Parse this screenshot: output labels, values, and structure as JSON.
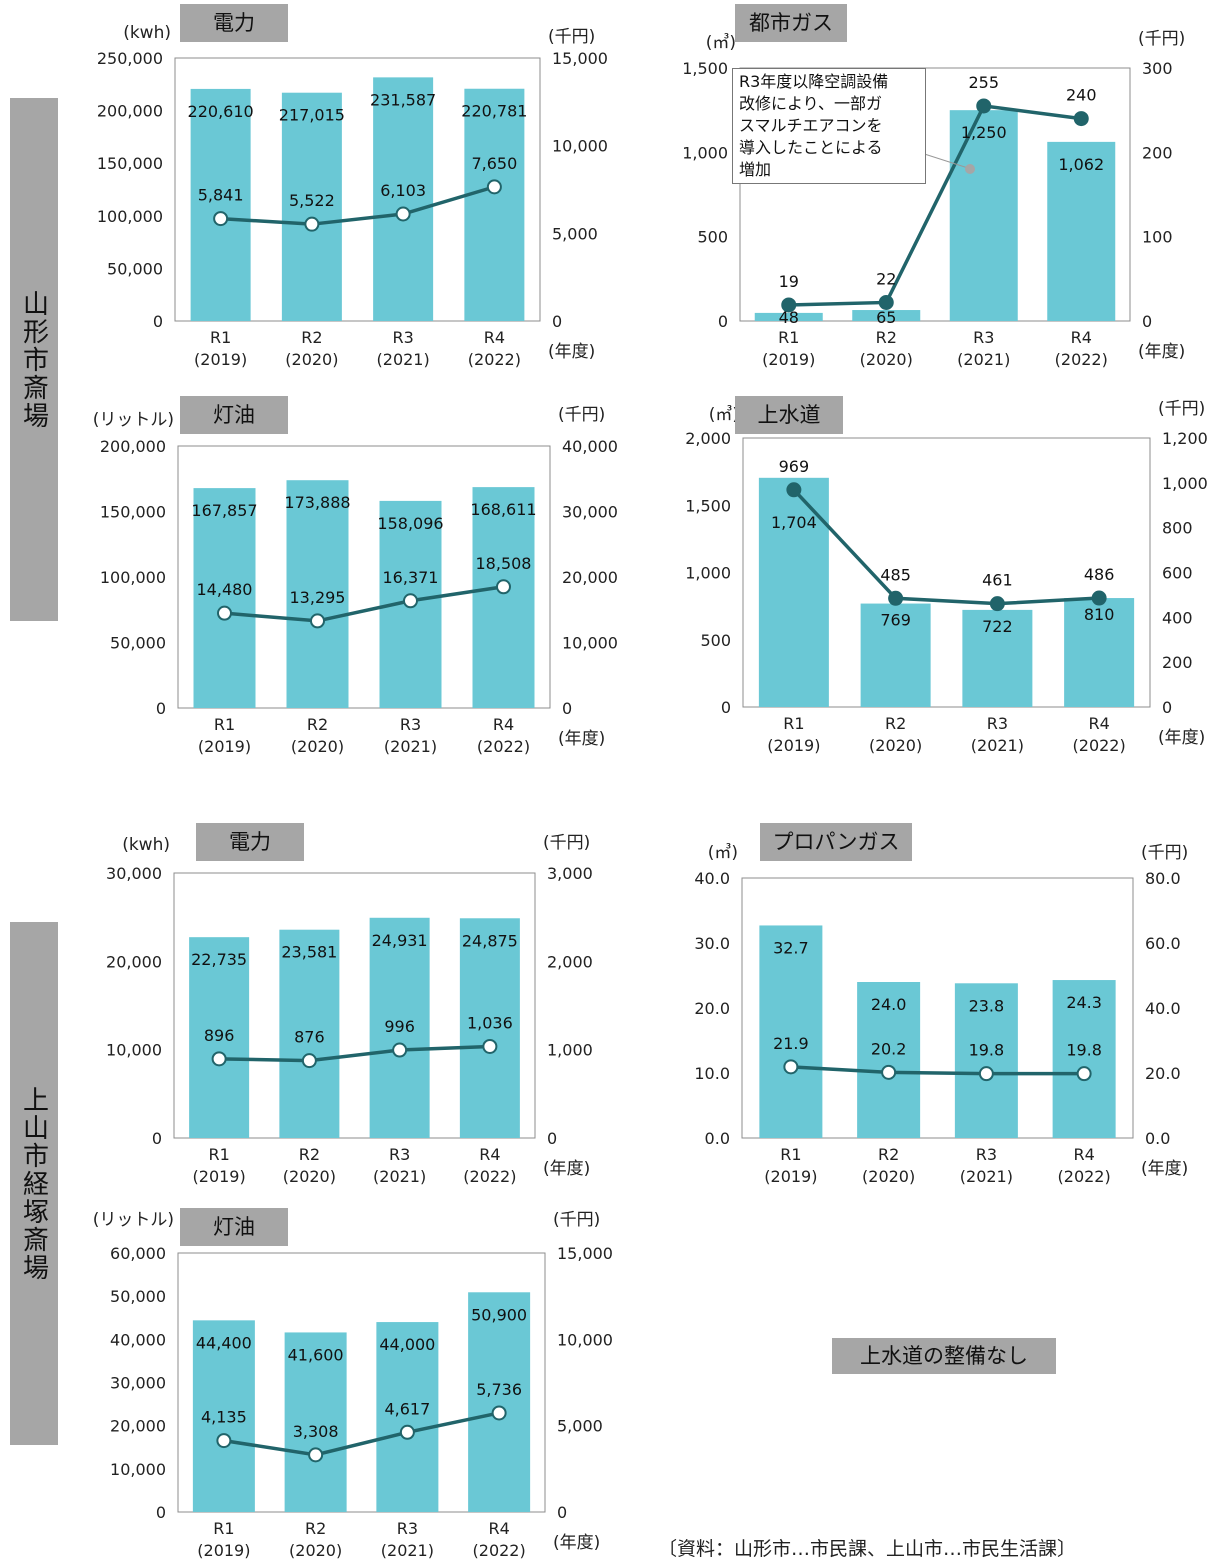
{
  "facilities": [
    {
      "name": "山形市斎場"
    },
    {
      "name": "上山市経塚斎場"
    }
  ],
  "colors": {
    "bar": "#6ac8d5",
    "line": "#21646a",
    "marker_fill": "#ffffff",
    "note_marker": "#a6a6a6"
  },
  "charts": [
    {
      "id": "c1",
      "title": "電力",
      "left_unit": "(kwh)",
      "right_unit": "(千円)",
      "x_suffix": "(年度)",
      "left_ticks": [
        "250,000",
        "200,000",
        "150,000",
        "100,000",
        "50,000",
        "0"
      ],
      "right_ticks": [
        "15,000",
        "10,000",
        "5,000",
        "0"
      ],
      "categories": [
        {
          "code": "R1",
          "year": "(2019)"
        },
        {
          "code": "R2",
          "year": "(2020)"
        },
        {
          "code": "R3",
          "year": "(2021)"
        },
        {
          "code": "R4",
          "year": "(2022)"
        }
      ],
      "bar_labels": [
        "220,610",
        "217,015",
        "231,587",
        "220,781"
      ],
      "line_labels": [
        "5,841",
        "5,522",
        "6,103",
        "7,650"
      ]
    },
    {
      "id": "c2",
      "title": "都市ガス",
      "left_unit": "(㎥)",
      "right_unit": "(千円)",
      "x_suffix": "(年度)",
      "left_ticks": [
        "1,500",
        "1,000",
        "500",
        "0"
      ],
      "right_ticks": [
        "300",
        "200",
        "100",
        "0"
      ],
      "categories": [
        {
          "code": "R1",
          "year": "(2019)"
        },
        {
          "code": "R2",
          "year": "(2020)"
        },
        {
          "code": "R3",
          "year": "(2021)"
        },
        {
          "code": "R4",
          "year": "(2022)"
        }
      ],
      "bar_labels": [
        "48",
        "65",
        "1,250",
        "1,062"
      ],
      "line_labels": [
        "19",
        "22",
        "255",
        "240"
      ],
      "note_lines": [
        "R3年度以降空調設備",
        "改修により、一部ガ",
        "スマルチエアコンを",
        "導入したことによる",
        "増加"
      ]
    },
    {
      "id": "c3",
      "title": "灯油",
      "left_unit": "(リットル)",
      "right_unit": "(千円)",
      "x_suffix": "(年度)",
      "left_ticks": [
        "200,000",
        "150,000",
        "100,000",
        "50,000",
        "0"
      ],
      "right_ticks": [
        "40,000",
        "30,000",
        "20,000",
        "10,000",
        "0"
      ],
      "categories": [
        {
          "code": "R1",
          "year": "(2019)"
        },
        {
          "code": "R2",
          "year": "(2020)"
        },
        {
          "code": "R3",
          "year": "(2021)"
        },
        {
          "code": "R4",
          "year": "(2022)"
        }
      ],
      "bar_labels": [
        "167,857",
        "173,888",
        "158,096",
        "168,611"
      ],
      "line_labels": [
        "14,480",
        "13,295",
        "16,371",
        "18,508"
      ]
    },
    {
      "id": "c4",
      "title": "上水道",
      "left_unit": "(㎥)",
      "right_unit": "(千円)",
      "x_suffix": "(年度)",
      "left_ticks": [
        "2,000",
        "1,500",
        "1,000",
        "500",
        "0"
      ],
      "right_ticks": [
        "1,200",
        "1,000",
        "800",
        "600",
        "400",
        "200",
        "0"
      ],
      "categories": [
        {
          "code": "R1",
          "year": "(2019)"
        },
        {
          "code": "R2",
          "year": "(2020)"
        },
        {
          "code": "R3",
          "year": "(2021)"
        },
        {
          "code": "R4",
          "year": "(2022)"
        }
      ],
      "bar_labels": [
        "1,704",
        "769",
        "722",
        "810"
      ],
      "line_labels": [
        "969",
        "485",
        "461",
        "486"
      ]
    },
    {
      "id": "c5",
      "title": "電力",
      "left_unit": "(kwh)",
      "right_unit": "(千円)",
      "x_suffix": "(年度)",
      "left_ticks": [
        "30,000",
        "20,000",
        "10,000",
        "0"
      ],
      "right_ticks": [
        "3,000",
        "2,000",
        "1,000",
        "0"
      ],
      "categories": [
        {
          "code": "R1",
          "year": "(2019)"
        },
        {
          "code": "R2",
          "year": "(2020)"
        },
        {
          "code": "R3",
          "year": "(2021)"
        },
        {
          "code": "R4",
          "year": "(2022)"
        }
      ],
      "bar_labels": [
        "22,735",
        "23,581",
        "24,931",
        "24,875"
      ],
      "line_labels": [
        "896",
        "876",
        "996",
        "1,036"
      ]
    },
    {
      "id": "c6",
      "title": "プロパンガス",
      "left_unit": "(㎥)",
      "right_unit": "(千円)",
      "x_suffix": "(年度)",
      "left_ticks": [
        "40.0",
        "30.0",
        "20.0",
        "10.0",
        "0.0"
      ],
      "right_ticks": [
        "80.0",
        "60.0",
        "40.0",
        "20.0",
        "0.0"
      ],
      "categories": [
        {
          "code": "R1",
          "year": "(2019)"
        },
        {
          "code": "R2",
          "year": "(2020)"
        },
        {
          "code": "R3",
          "year": "(2021)"
        },
        {
          "code": "R4",
          "year": "(2022)"
        }
      ],
      "bar_labels": [
        "32.7",
        "24.0",
        "23.8",
        "24.3"
      ],
      "line_labels": [
        "21.9",
        "20.2",
        "19.8",
        "19.8"
      ]
    },
    {
      "id": "c7",
      "title": "灯油",
      "left_unit": "(リットル)",
      "right_unit": "(千円)",
      "x_suffix": "(年度)",
      "left_ticks": [
        "60,000",
        "50,000",
        "40,000",
        "30,000",
        "20,000",
        "10,000",
        "0"
      ],
      "right_ticks": [
        "15,000",
        "10,000",
        "5,000",
        "0"
      ],
      "categories": [
        {
          "code": "R1",
          "year": "(2019)"
        },
        {
          "code": "R2",
          "year": "(2020)"
        },
        {
          "code": "R3",
          "year": "(2021)"
        },
        {
          "code": "R4",
          "year": "(2022)"
        }
      ],
      "bar_labels": [
        "44,400",
        "41,600",
        "44,000",
        "50,900"
      ],
      "line_labels": [
        "4,135",
        "3,308",
        "4,617",
        "5,736"
      ]
    }
  ],
  "no_water_note": "上水道の整備なし",
  "source": "〔資料：山形市…市民課、上山市…市民生活課〕",
  "chart_data": [
    {
      "type": "bar",
      "facility": "山形市斎場",
      "title": "電力",
      "categories": [
        "R1 (2019)",
        "R2 (2020)",
        "R3 (2021)",
        "R4 (2022)"
      ],
      "series": [
        {
          "values": [
            220610,
            217015,
            231587,
            220781
          ],
          "axis": "left",
          "mark": "bar"
        },
        {
          "values": [
            5841,
            5522,
            6103,
            7650
          ],
          "axis": "right",
          "mark": "line"
        }
      ],
      "ylabel": "(kwh)",
      "y2label": "(千円)",
      "xlabel": "(年度)",
      "ylim": [
        0,
        250000
      ],
      "y2lim": [
        0,
        15000
      ],
      "grid": false
    },
    {
      "type": "bar",
      "facility": "山形市斎場",
      "title": "都市ガス",
      "categories": [
        "R1 (2019)",
        "R2 (2020)",
        "R3 (2021)",
        "R4 (2022)"
      ],
      "series": [
        {
          "values": [
            48,
            65,
            1250,
            1062
          ],
          "axis": "left",
          "mark": "bar"
        },
        {
          "values": [
            19,
            22,
            255,
            240
          ],
          "axis": "right",
          "mark": "line"
        }
      ],
      "ylabel": "(㎥)",
      "y2label": "(千円)",
      "xlabel": "(年度)",
      "ylim": [
        0,
        1500
      ],
      "y2lim": [
        0,
        300
      ],
      "grid": false,
      "annotation": "R3年度以降空調設備改修により、一部ガスマルチエアコンを導入したことによる増加"
    },
    {
      "type": "bar",
      "facility": "山形市斎場",
      "title": "灯油",
      "categories": [
        "R1 (2019)",
        "R2 (2020)",
        "R3 (2021)",
        "R4 (2022)"
      ],
      "series": [
        {
          "values": [
            167857,
            173888,
            158096,
            168611
          ],
          "axis": "left",
          "mark": "bar"
        },
        {
          "values": [
            14480,
            13295,
            16371,
            18508
          ],
          "axis": "right",
          "mark": "line"
        }
      ],
      "ylabel": "(リットル)",
      "y2label": "(千円)",
      "xlabel": "(年度)",
      "ylim": [
        0,
        200000
      ],
      "y2lim": [
        0,
        40000
      ],
      "grid": false
    },
    {
      "type": "bar",
      "facility": "山形市斎場",
      "title": "上水道",
      "categories": [
        "R1 (2019)",
        "R2 (2020)",
        "R3 (2021)",
        "R4 (2022)"
      ],
      "series": [
        {
          "values": [
            1704,
            769,
            722,
            810
          ],
          "axis": "left",
          "mark": "bar"
        },
        {
          "values": [
            969,
            485,
            461,
            486
          ],
          "axis": "right",
          "mark": "line"
        }
      ],
      "ylabel": "(㎥)",
      "y2label": "(千円)",
      "xlabel": "(年度)",
      "ylim": [
        0,
        2000
      ],
      "y2lim": [
        0,
        1200
      ],
      "grid": false
    },
    {
      "type": "bar",
      "facility": "上山市経塚斎場",
      "title": "電力",
      "categories": [
        "R1 (2019)",
        "R2 (2020)",
        "R3 (2021)",
        "R4 (2022)"
      ],
      "series": [
        {
          "values": [
            22735,
            23581,
            24931,
            24875
          ],
          "axis": "left",
          "mark": "bar"
        },
        {
          "values": [
            896,
            876,
            996,
            1036
          ],
          "axis": "right",
          "mark": "line"
        }
      ],
      "ylabel": "(kwh)",
      "y2label": "(千円)",
      "xlabel": "(年度)",
      "ylim": [
        0,
        30000
      ],
      "y2lim": [
        0,
        3000
      ],
      "grid": false
    },
    {
      "type": "bar",
      "facility": "上山市経塚斎場",
      "title": "プロパンガス",
      "categories": [
        "R1 (2019)",
        "R2 (2020)",
        "R3 (2021)",
        "R4 (2022)"
      ],
      "series": [
        {
          "values": [
            32.7,
            24.0,
            23.8,
            24.3
          ],
          "axis": "left",
          "mark": "bar"
        },
        {
          "values": [
            21.9,
            20.2,
            19.8,
            19.8
          ],
          "axis": "right",
          "mark": "line"
        }
      ],
      "ylabel": "(㎥)",
      "y2label": "(千円)",
      "xlabel": "(年度)",
      "ylim": [
        0,
        40
      ],
      "y2lim": [
        0,
        80
      ],
      "grid": false
    },
    {
      "type": "bar",
      "facility": "上山市経塚斎場",
      "title": "灯油",
      "categories": [
        "R1 (2019)",
        "R2 (2020)",
        "R3 (2021)",
        "R4 (2022)"
      ],
      "series": [
        {
          "values": [
            44400,
            41600,
            44000,
            50900
          ],
          "axis": "left",
          "mark": "bar"
        },
        {
          "values": [
            4135,
            3308,
            4617,
            5736
          ],
          "axis": "right",
          "mark": "line"
        }
      ],
      "ylabel": "(リットル)",
      "y2label": "(千円)",
      "xlabel": "(年度)",
      "ylim": [
        0,
        60000
      ],
      "y2lim": [
        0,
        15000
      ],
      "grid": false
    }
  ]
}
